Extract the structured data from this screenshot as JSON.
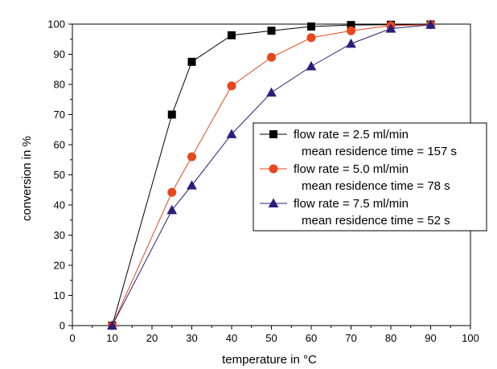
{
  "chart_data": {
    "type": "line",
    "xlabel": "temperature in °C",
    "ylabel": "conversion in %",
    "xlim": [
      0,
      100
    ],
    "ylim": [
      0,
      100
    ],
    "xticks": [
      0,
      10,
      20,
      30,
      40,
      50,
      60,
      70,
      80,
      90,
      100
    ],
    "yticks": [
      0,
      10,
      20,
      30,
      40,
      50,
      60,
      70,
      80,
      90,
      100
    ],
    "grid": false,
    "legend_position": "right",
    "series": [
      {
        "name": "flow rate = 2.5 ml/min",
        "subtitle": "mean residence time = 157 s",
        "color": "#000000",
        "marker": "square",
        "x": [
          10,
          25,
          30,
          40,
          50,
          60,
          70,
          80,
          90
        ],
        "y": [
          0,
          70,
          87.5,
          96.3,
          97.8,
          99.2,
          99.7,
          99.8,
          99.9
        ]
      },
      {
        "name": "flow rate = 5.0 ml/min",
        "subtitle": "mean residence time = 78 s",
        "color": "#e8461c",
        "marker": "circle",
        "x": [
          10,
          25,
          30,
          40,
          50,
          60,
          70,
          80,
          90
        ],
        "y": [
          0,
          44.2,
          56,
          79.5,
          89,
          95.5,
          97.8,
          99.5,
          99.8
        ]
      },
      {
        "name": "flow rate = 7.5 ml/min",
        "subtitle": "mean residence time = 52 s",
        "color": "#2b1f7a",
        "marker": "triangle",
        "x": [
          10,
          25,
          30,
          40,
          50,
          60,
          70,
          80,
          90
        ],
        "y": [
          0,
          38.3,
          46.5,
          63.5,
          77.3,
          86,
          93.5,
          98.5,
          99.8
        ]
      }
    ]
  }
}
